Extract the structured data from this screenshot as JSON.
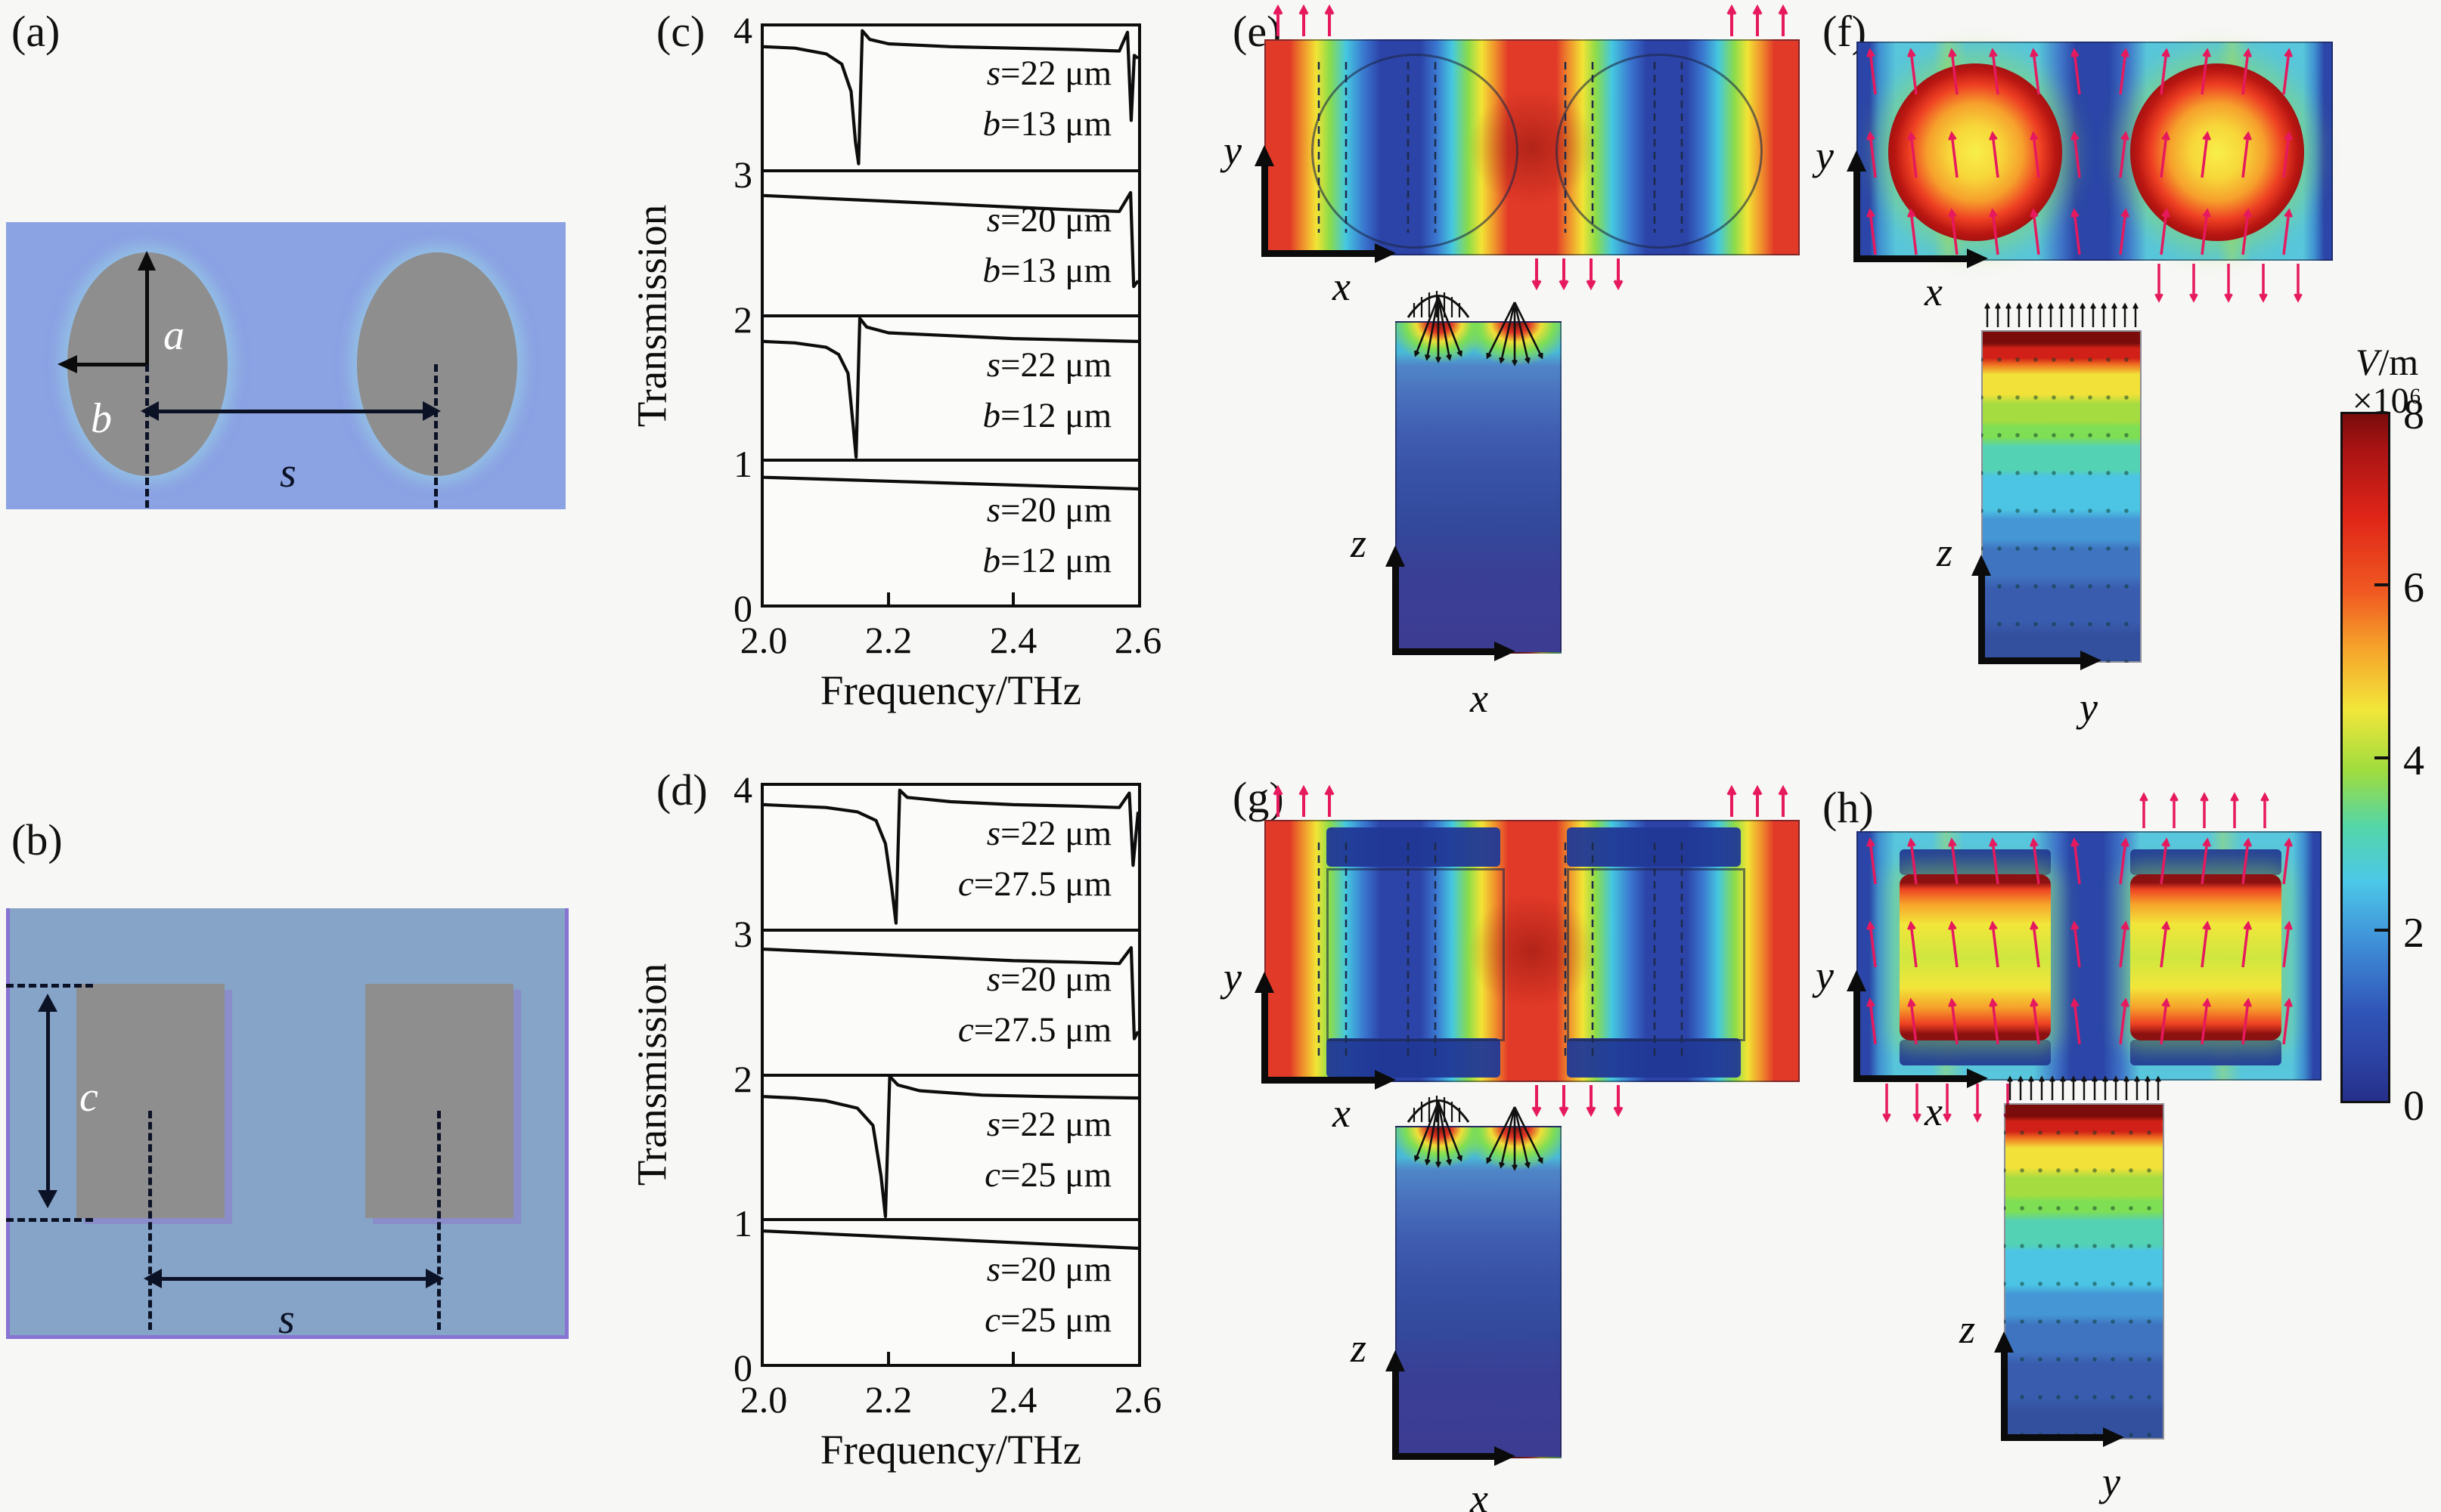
{
  "figure": {
    "panel_letters": [
      "(a)",
      "(b)",
      "(c)",
      "(d)",
      "(e)",
      "(f)",
      "(g)",
      "(h)"
    ],
    "description": "Multi-panel simulation figure: unit-cell schematics of elliptical and square hole pairs, stacked terahertz transmission spectra, and simulated electric-field distributions with a shared colorbar"
  },
  "schematic_a": {
    "dim_a": "a",
    "dim_b": "b",
    "dim_s": "s"
  },
  "schematic_b": {
    "dim_c": "c",
    "dim_s": "s"
  },
  "axes_labels": {
    "x": "x",
    "y": "y",
    "z": "z"
  },
  "colorbar": {
    "title_v": "V",
    "title_rest": "/m",
    "multiplier": "×10⁶",
    "ticks": [
      "8",
      "6",
      "4",
      "2",
      "0"
    ],
    "min": 0,
    "max": 8
  },
  "chart_data": [
    {
      "id": "c",
      "type": "line",
      "ylabel": "Transmission",
      "xlabel": "Frequency/THz",
      "xlim": [
        2.0,
        2.6
      ],
      "ylim": [
        0,
        4
      ],
      "xticks": [
        "2.0",
        "2.2",
        "2.4",
        "2.6"
      ],
      "yticks": [
        "4",
        "3",
        "2",
        "1",
        "0"
      ],
      "note": "Four vertically offset transmission spectra of the elliptical-hole structure; sharp Fano-type resonance dips near 2.15 THz and 2.59 THz",
      "series": [
        {
          "name": "s=22 μm, b=13 μm",
          "l1v": "s",
          "l1r": "=22 μm",
          "l2v": "b",
          "l2r": "=13 μm",
          "x": [
            2.0,
            2.05,
            2.1,
            2.125,
            2.14,
            2.147,
            2.152,
            2.158,
            2.17,
            2.2,
            2.3,
            2.4,
            2.5,
            2.57,
            2.583,
            2.589,
            2.594,
            2.6
          ],
          "y": [
            3.86,
            3.85,
            3.81,
            3.74,
            3.55,
            3.2,
            3.05,
            3.97,
            3.91,
            3.88,
            3.86,
            3.85,
            3.84,
            3.83,
            3.96,
            3.35,
            3.8,
            3.78
          ]
        },
        {
          "name": "s=20 μm, b=13 μm",
          "l1v": "s",
          "l1r": "=20 μm",
          "l2v": "b",
          "l2r": "=13 μm",
          "x": [
            2.0,
            2.1,
            2.2,
            2.3,
            2.4,
            2.5,
            2.57,
            2.588,
            2.593,
            2.6
          ],
          "y": [
            2.83,
            2.81,
            2.79,
            2.77,
            2.75,
            2.73,
            2.72,
            2.85,
            2.2,
            2.24
          ]
        },
        {
          "name": "s=22 μm, b=12 μm",
          "l1v": "s",
          "l1r": "=22 μm",
          "l2v": "b",
          "l2r": "=12 μm",
          "x": [
            2.0,
            2.05,
            2.1,
            2.12,
            2.135,
            2.143,
            2.148,
            2.154,
            2.165,
            2.2,
            2.3,
            2.4,
            2.5,
            2.6
          ],
          "y": [
            1.82,
            1.81,
            1.78,
            1.73,
            1.6,
            1.25,
            1.02,
            1.98,
            1.92,
            1.88,
            1.86,
            1.84,
            1.83,
            1.82
          ]
        },
        {
          "name": "s=20 μm, b=12 μm",
          "l1v": "s",
          "l1r": "=20 μm",
          "l2v": "b",
          "l2r": "=12 μm",
          "x": [
            2.0,
            2.15,
            2.3,
            2.45,
            2.6
          ],
          "y": [
            0.88,
            0.86,
            0.84,
            0.82,
            0.8
          ]
        }
      ]
    },
    {
      "id": "d",
      "type": "line",
      "ylabel": "Transmission",
      "xlabel": "Frequency/THz",
      "xlim": [
        2.0,
        2.6
      ],
      "ylim": [
        0,
        4
      ],
      "xticks": [
        "2.0",
        "2.2",
        "2.4",
        "2.6"
      ],
      "yticks": [
        "4",
        "3",
        "2",
        "1",
        "0"
      ],
      "note": "Four vertically offset transmission spectra of the square-hole structure; resonance dips near 2.2 THz and 2.59 THz",
      "series": [
        {
          "name": "s=22 μm, c=27.5 μm",
          "l1v": "s",
          "l1r": "=22 μm",
          "l2v": "c",
          "l2r": "=27.5 μm",
          "x": [
            2.0,
            2.1,
            2.15,
            2.18,
            2.195,
            2.205,
            2.212,
            2.218,
            2.23,
            2.3,
            2.4,
            2.5,
            2.57,
            2.586,
            2.592,
            2.6
          ],
          "y": [
            3.87,
            3.85,
            3.82,
            3.76,
            3.6,
            3.3,
            3.05,
            3.97,
            3.92,
            3.89,
            3.87,
            3.86,
            3.85,
            3.95,
            3.45,
            3.82
          ]
        },
        {
          "name": "s=20 μm, c=27.5 μm",
          "l1v": "s",
          "l1r": "=20 μm",
          "l2v": "c",
          "l2r": "=27.5 μm",
          "x": [
            2.0,
            2.1,
            2.2,
            2.3,
            2.4,
            2.5,
            2.57,
            2.589,
            2.594,
            2.6
          ],
          "y": [
            2.87,
            2.85,
            2.83,
            2.81,
            2.79,
            2.78,
            2.77,
            2.88,
            2.25,
            2.3
          ]
        },
        {
          "name": "s=22 μm, c=25 μm",
          "l1v": "s",
          "l1r": "=22 μm",
          "l2v": "c",
          "l2r": "=25 μm",
          "x": [
            2.0,
            2.05,
            2.1,
            2.15,
            2.175,
            2.188,
            2.195,
            2.202,
            2.215,
            2.25,
            2.35,
            2.45,
            2.6
          ],
          "y": [
            1.85,
            1.84,
            1.82,
            1.77,
            1.65,
            1.3,
            1.02,
            1.99,
            1.93,
            1.89,
            1.86,
            1.85,
            1.84
          ]
        },
        {
          "name": "s=20 μm, c=25 μm",
          "l1v": "s",
          "l1r": "=20 μm",
          "l2v": "c",
          "l2r": "=25 μm",
          "x": [
            2.0,
            2.15,
            2.3,
            2.45,
            2.6
          ],
          "y": [
            0.92,
            0.89,
            0.86,
            0.83,
            0.8
          ]
        }
      ]
    },
    {
      "id": "e",
      "type": "heatmap",
      "panel": "(e)",
      "structure": "two elliptical air holes",
      "views": [
        {
          "plane": "x-y",
          "xaxis": "x",
          "yaxis": "y"
        },
        {
          "plane": "x-z",
          "xaxis": "x",
          "yaxis": "z"
        }
      ],
      "quantity": "electric field magnitude",
      "units": "V/m",
      "scale": "×10⁶",
      "range": [
        0,
        8
      ],
      "pattern": "vertical red/yellow field-maximum stripes between and beside the holes, blue minima inside the elliptical holes; pink arrows show field direction; side view shows two hot spots confined to the top surface decaying into a blue substrate"
    },
    {
      "id": "f",
      "type": "heatmap",
      "panel": "(f)",
      "structure": "two elliptical air holes",
      "views": [
        {
          "plane": "x-y",
          "xaxis": "x",
          "yaxis": "y"
        },
        {
          "plane": "y-z",
          "xaxis": "y",
          "yaxis": "z"
        }
      ],
      "quantity": "electric field magnitude",
      "units": "V/m",
      "scale": "×10⁶",
      "range": [
        0,
        8
      ],
      "pattern": "field maxima of about 8×10⁶ V/m concentrated on the two elliptical holes over a cyan background with dark-blue bands at edges and centre; side view shows horizontal layers decaying from dark red at the surface to dark blue below"
    },
    {
      "id": "g",
      "type": "heatmap",
      "panel": "(g)",
      "structure": "two square air holes",
      "views": [
        {
          "plane": "x-y",
          "xaxis": "x",
          "yaxis": "y"
        },
        {
          "plane": "x-z",
          "xaxis": "x",
          "yaxis": "z"
        }
      ],
      "quantity": "electric field magnitude",
      "units": "V/m",
      "scale": "×10⁶",
      "range": [
        0,
        8
      ],
      "pattern": "red field-maximum stripes at the edges and centre, square outlines with blue interiors and dark-blue caps above/below each square; side view shows surface-confined hot spots over a blue substrate"
    },
    {
      "id": "h",
      "type": "heatmap",
      "panel": "(h)",
      "structure": "two square air holes",
      "views": [
        {
          "plane": "x-y",
          "xaxis": "x",
          "yaxis": "y"
        },
        {
          "plane": "y-z",
          "xaxis": "y",
          "yaxis": "z"
        }
      ],
      "quantity": "electric field magnitude",
      "units": "V/m",
      "scale": "×10⁶",
      "range": [
        0,
        8
      ],
      "pattern": "hot red/yellow square regions on a cyan background with swirling pink field arrows; side view shows layered decay from dark red at the top surface to blue at the bottom"
    }
  ]
}
